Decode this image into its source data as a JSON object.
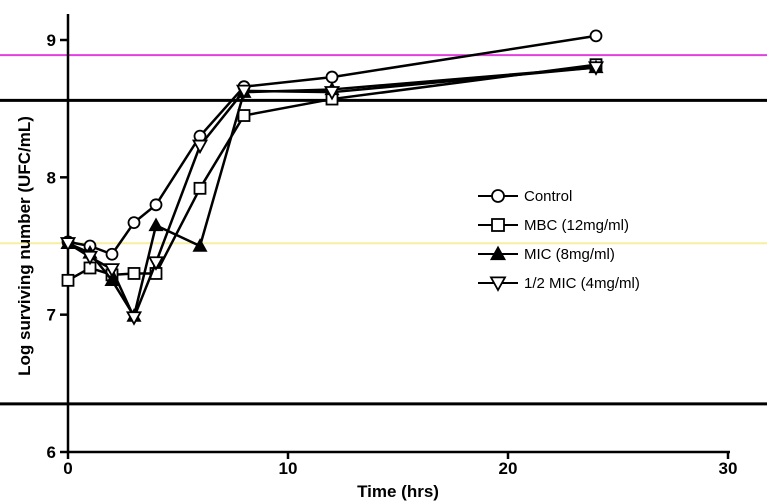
{
  "chart_data": {
    "type": "line",
    "xlabel": "Time (hrs)",
    "ylabel": "Log surviving number  (UFC/mL)",
    "xlim": [
      0,
      30
    ],
    "ylim": [
      6,
      9.2
    ],
    "x_ticks": [
      0,
      10,
      20,
      30
    ],
    "x_tick_labels": [
      "0",
      "10",
      "20",
      "30"
    ],
    "y_ticks": [
      6,
      7,
      8,
      9
    ],
    "y_tick_labels": [
      "6",
      "7",
      "8",
      "9"
    ],
    "grid": false,
    "legend_position": "center-right",
    "reference_lines": [
      {
        "y": 8.89,
        "color": "#e040e0"
      },
      {
        "y": 8.56,
        "color": "#000000"
      },
      {
        "y": 7.52,
        "color": "#f5f0a0"
      },
      {
        "y": 6.35,
        "color": "#000000"
      }
    ],
    "series": [
      {
        "name": "Control",
        "marker": "circle",
        "x": [
          0,
          1,
          2,
          3,
          4,
          6,
          8,
          12,
          24
        ],
        "y": [
          7.53,
          7.5,
          7.44,
          7.67,
          7.8,
          8.3,
          8.66,
          8.73,
          9.03
        ]
      },
      {
        "name": "MBC (12mg/ml)",
        "marker": "square",
        "x": [
          0,
          1,
          2,
          3,
          4,
          6,
          8,
          12,
          24
        ],
        "y": [
          7.25,
          7.34,
          7.29,
          7.3,
          7.3,
          7.92,
          8.45,
          8.57,
          8.82
        ]
      },
      {
        "name": "MIC (8mg/ml)",
        "marker": "triangle-up",
        "x": [
          0,
          1,
          2,
          3,
          4,
          6,
          8,
          12,
          24
        ],
        "y": [
          7.52,
          7.45,
          7.25,
          6.99,
          7.65,
          7.5,
          8.62,
          8.64,
          8.8
        ]
      },
      {
        "name": "1/2 MIC (4mg/ml)",
        "marker": "triangle-down",
        "x": [
          0,
          1,
          2,
          3,
          4,
          6,
          8,
          12,
          24
        ],
        "y": [
          7.52,
          7.42,
          7.33,
          6.98,
          7.38,
          8.23,
          8.63,
          8.62,
          8.8
        ]
      }
    ]
  }
}
